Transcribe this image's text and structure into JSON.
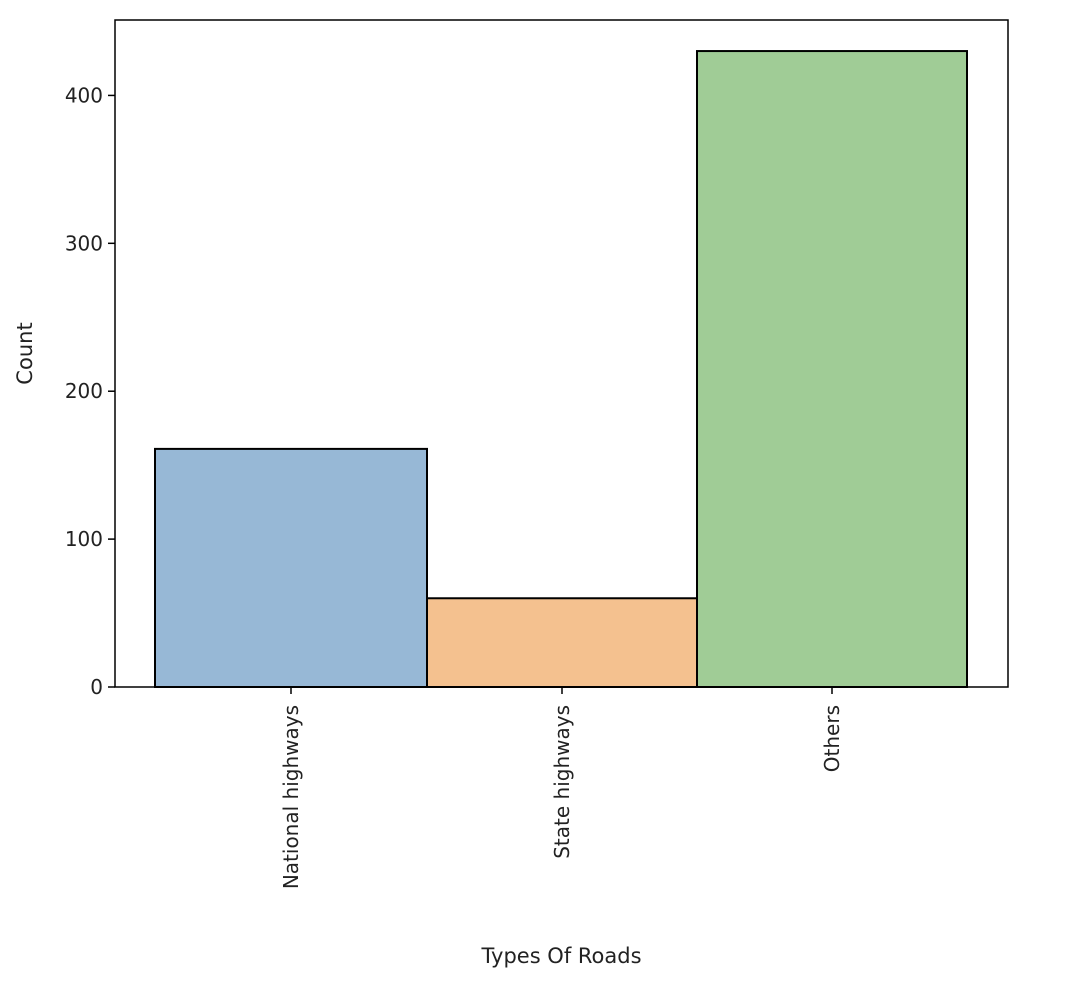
{
  "chart_data": {
    "type": "bar",
    "title": "",
    "xlabel": "Types Of Roads",
    "ylabel": "Count",
    "categories": [
      "National highways",
      "State highways",
      "Others"
    ],
    "values": [
      161,
      60,
      430
    ],
    "colors": [
      "#97b8d6",
      "#f4c18f",
      "#a0cc96"
    ],
    "edge_color": "#000000",
    "yticks": [
      0,
      100,
      200,
      300,
      400
    ],
    "ylim": [
      0,
      451
    ],
    "grid": false,
    "legend": "none",
    "xtick_rotation": 90
  }
}
